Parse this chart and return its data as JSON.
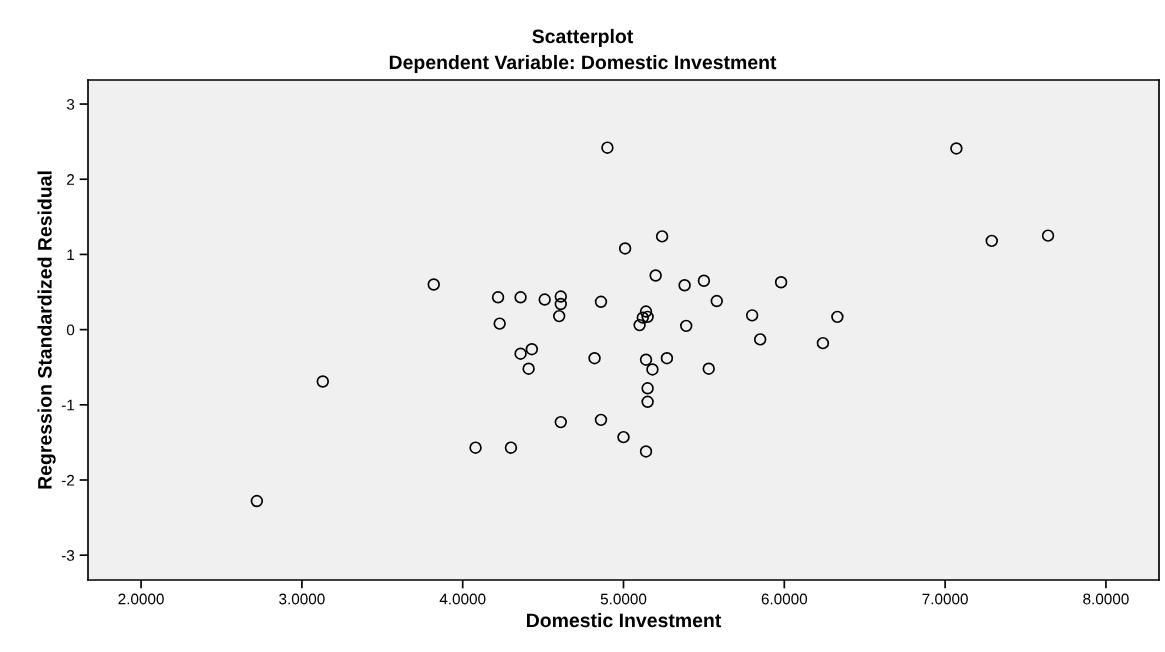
{
  "chart_data": {
    "type": "scatter",
    "title": "Scatterplot",
    "subtitle": "Dependent Variable: Domestic Investment",
    "xlabel": "Domestic Investment",
    "ylabel": "Regression Standardized Residual",
    "xlim": [
      1.67,
      8.33
    ],
    "ylim": [
      -3.33,
      3.32
    ],
    "xticks": [
      {
        "value": 2,
        "label": "2.0000"
      },
      {
        "value": 3,
        "label": "3.0000"
      },
      {
        "value": 4,
        "label": "4.0000"
      },
      {
        "value": 5,
        "label": "5.0000"
      },
      {
        "value": 6,
        "label": "6.0000"
      },
      {
        "value": 7,
        "label": "7.0000"
      },
      {
        "value": 8,
        "label": "8.0000"
      }
    ],
    "yticks": [
      -3,
      -2,
      -1,
      0,
      1,
      2,
      3
    ],
    "grid": false,
    "marker": "circle",
    "series": [
      {
        "color": "#000000",
        "x": [
          2.72,
          3.13,
          3.82,
          4.9,
          5.24,
          5.01,
          5.2,
          4.22,
          4.36,
          4.51,
          4.61,
          4.61,
          4.6,
          4.86,
          5.38,
          5.5,
          5.58,
          5.98,
          5.8,
          5.85,
          5.14,
          5.12,
          5.15,
          5.1,
          5.39,
          4.23,
          4.43,
          4.36,
          4.41,
          4.82,
          5.14,
          5.27,
          5.18,
          5.53,
          5.15,
          5.15,
          4.61,
          4.86,
          5.0,
          4.08,
          4.3,
          5.14,
          7.07,
          7.29,
          7.64,
          6.33,
          6.24
        ],
        "values": [
          -2.28,
          -0.69,
          0.6,
          2.42,
          1.24,
          1.08,
          0.72,
          0.43,
          0.43,
          0.4,
          0.44,
          0.34,
          0.18,
          0.37,
          0.59,
          0.65,
          0.38,
          0.63,
          0.19,
          -0.13,
          0.24,
          0.16,
          0.17,
          0.06,
          0.05,
          0.08,
          -0.26,
          -0.32,
          -0.52,
          -0.38,
          -0.4,
          -0.38,
          -0.53,
          -0.52,
          -0.78,
          -0.96,
          -1.23,
          -1.2,
          -1.43,
          -1.57,
          -1.57,
          -1.62,
          2.41,
          1.18,
          1.25,
          0.17,
          -0.18
        ]
      }
    ]
  }
}
